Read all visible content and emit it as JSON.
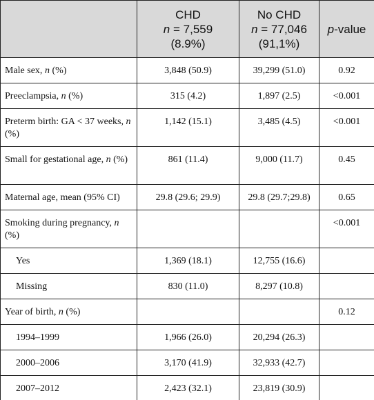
{
  "table": {
    "header": [
      null,
      {
        "label": "CHD",
        "n": [
          {
            "text": "n",
            "italic": true
          },
          {
            "text": " = 7,559"
          }
        ],
        "pct": "(8.9%)"
      },
      {
        "label": "No CHD",
        "n": [
          {
            "text": "n",
            "italic": true
          },
          {
            "text": " = 77,046"
          }
        ],
        "pct": "(91,1%)"
      },
      {
        "label": [
          {
            "text": "p",
            "italic": true
          },
          {
            "text": "-value"
          }
        ]
      }
    ],
    "rows": [
      {
        "label": [
          {
            "text": "Male sex, "
          },
          {
            "text": "n",
            "italic": true
          },
          {
            "text": " (%)"
          }
        ],
        "cells": [
          "3,848 (50.9)",
          "39,299 (51.0)",
          "0.92"
        ]
      },
      {
        "label": [
          {
            "text": "Preeclampsia, "
          },
          {
            "text": "n",
            "italic": true
          },
          {
            "text": " (%)"
          }
        ],
        "cells": [
          "315 (4.2)",
          "1,897 (2.5)",
          "<0.001"
        ]
      },
      {
        "label": [
          {
            "text": "Preterm birth: GA < 37 weeks, "
          },
          {
            "text": "n",
            "italic": true
          },
          {
            "text": " (%)"
          }
        ],
        "cells": [
          "1,142 (15.1)",
          "3,485 (4.5)",
          "<0.001"
        ],
        "tall": true
      },
      {
        "label": [
          {
            "text": "Small for gestational age, "
          },
          {
            "text": "n",
            "italic": true
          },
          {
            "text": " (%)"
          }
        ],
        "cells": [
          "861 (11.4)",
          "9,000 (11.7)",
          "0.45"
        ],
        "tall": true
      },
      {
        "label": [
          {
            "text": "Maternal age, mean (95% CI)"
          }
        ],
        "cells": [
          "29.8 (29.6; 29.9)",
          "29.8 (29.7;29.8)",
          "0.65"
        ]
      },
      {
        "label": [
          {
            "text": "Smoking during pregnancy, "
          },
          {
            "text": "n",
            "italic": true
          },
          {
            "text": " (%)"
          }
        ],
        "cells": [
          null,
          null,
          "<0.001"
        ],
        "tall": true
      },
      {
        "label": [
          {
            "text": "Yes"
          }
        ],
        "cells": [
          "1,369 (18.1)",
          "12,755 (16.6)",
          null
        ],
        "indent": true
      },
      {
        "label": [
          {
            "text": "Missing"
          }
        ],
        "cells": [
          "830 (11.0)",
          "8,297 (10.8)",
          null
        ],
        "indent": true
      },
      {
        "label": [
          {
            "text": "Year of birth, "
          },
          {
            "text": "n",
            "italic": true
          },
          {
            "text": " (%)"
          }
        ],
        "cells": [
          null,
          null,
          "0.12"
        ]
      },
      {
        "label": [
          {
            "text": "1994–1999"
          }
        ],
        "cells": [
          "1,966 (26.0)",
          "20,294 (26.3)",
          null
        ],
        "indent": true
      },
      {
        "label": [
          {
            "text": "2000–2006"
          }
        ],
        "cells": [
          "3,170 (41.9)",
          "32,933 (42.7)",
          null
        ],
        "indent": true
      },
      {
        "label": [
          {
            "text": "2007–2012"
          }
        ],
        "cells": [
          "2,423 (32.1)",
          "23,819 (30.9)",
          null
        ],
        "indent": true
      }
    ]
  }
}
